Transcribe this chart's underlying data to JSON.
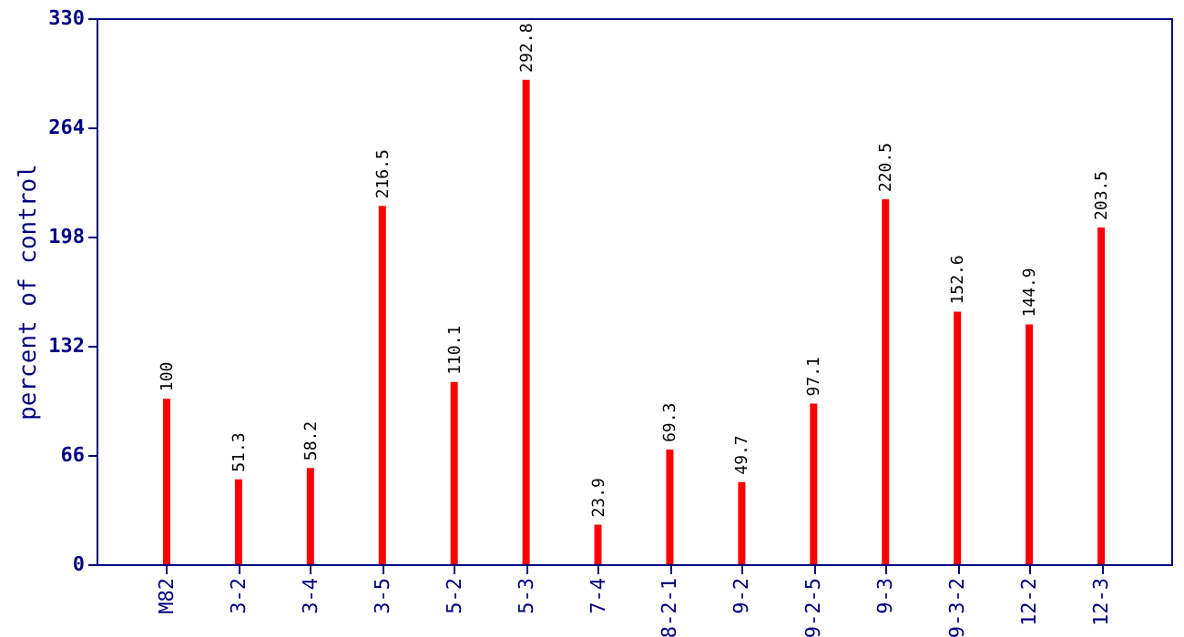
{
  "chart_data": {
    "type": "bar",
    "ylabel": "percent of control",
    "categories": [
      "M82",
      "3-2",
      "3-4",
      "3-5",
      "5-2",
      "5-3",
      "7-4",
      "8-2-1",
      "9-2",
      "9-2-5",
      "9-3",
      "9-3-2",
      "12-2",
      "12-3"
    ],
    "values": [
      100,
      51.3,
      58.2,
      216.5,
      110.1,
      292.8,
      23.9,
      69.3,
      49.7,
      97.1,
      220.5,
      152.6,
      144.9,
      203.5
    ],
    "color": "#ff0000",
    "ylim": [
      0,
      330
    ],
    "yticks": [
      0,
      66,
      132,
      198,
      264,
      330
    ],
    "data_labels": true
  }
}
